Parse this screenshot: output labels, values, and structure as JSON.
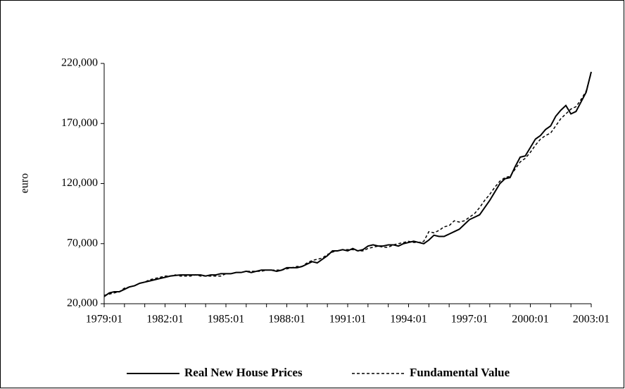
{
  "chart_data": {
    "type": "line",
    "ylabel": "euro",
    "categories": [
      "1979:01",
      null,
      null,
      null,
      null,
      null,
      null,
      null,
      null,
      null,
      null,
      null,
      "1982:01",
      null,
      null,
      null,
      null,
      null,
      null,
      null,
      null,
      null,
      null,
      null,
      "1985:01",
      null,
      null,
      null,
      null,
      null,
      null,
      null,
      null,
      null,
      null,
      null,
      "1988:01",
      null,
      null,
      null,
      null,
      null,
      null,
      null,
      null,
      null,
      null,
      null,
      "1991:01",
      null,
      null,
      null,
      null,
      null,
      null,
      null,
      null,
      null,
      null,
      null,
      "1994:01",
      null,
      null,
      null,
      null,
      null,
      null,
      null,
      null,
      null,
      null,
      null,
      "1997:01",
      null,
      null,
      null,
      null,
      null,
      null,
      null,
      null,
      null,
      null,
      null,
      "2000:01",
      null,
      null,
      null,
      null,
      null,
      null,
      null,
      null,
      null,
      null,
      null,
      "2003:01"
    ],
    "series": [
      {
        "name": "Real New House Prices",
        "color": "#000000",
        "style": "solid",
        "values": [
          26000,
          29000,
          30000,
          30000,
          32000,
          34000,
          35000,
          37000,
          38000,
          39000,
          40000,
          41000,
          42000,
          43000,
          43500,
          44000,
          44000,
          44000,
          44000,
          44000,
          43000,
          44000,
          44000,
          45000,
          45000,
          45000,
          46000,
          46000,
          47000,
          46000,
          47000,
          48000,
          48000,
          48000,
          47000,
          48000,
          50000,
          50000,
          50000,
          51000,
          53000,
          55000,
          54000,
          57000,
          60000,
          64000,
          64000,
          65000,
          64000,
          66000,
          64000,
          65000,
          68000,
          69000,
          68000,
          68000,
          69000,
          69000,
          68000,
          70000,
          71000,
          72000,
          71000,
          70000,
          73000,
          77000,
          76000,
          76000,
          78000,
          80000,
          82000,
          86000,
          90000,
          92000,
          94000,
          100000,
          106000,
          113000,
          120000,
          124000,
          125000,
          134000,
          142000,
          143000,
          150000,
          157000,
          160000,
          165000,
          168000,
          176000,
          181000,
          185000,
          178000,
          180000,
          188000,
          196000,
          213000
        ]
      },
      {
        "name": "Fundamental Value",
        "color": "#000000",
        "style": "dashed",
        "values": [
          27000,
          28000,
          29000,
          30000,
          33000,
          34000,
          35000,
          37000,
          38000,
          40000,
          41000,
          42000,
          43000,
          43000,
          44000,
          43000,
          43000,
          43000,
          44000,
          43000,
          43000,
          43000,
          43000,
          43000,
          45000,
          45000,
          46000,
          46000,
          47000,
          47000,
          47000,
          47000,
          48000,
          48000,
          48000,
          48000,
          49000,
          50000,
          51000,
          51000,
          54000,
          56000,
          57000,
          58000,
          61000,
          63000,
          64000,
          65000,
          65000,
          65000,
          64000,
          64000,
          66000,
          67000,
          68000,
          67000,
          67000,
          69000,
          70000,
          71000,
          72000,
          71000,
          71000,
          72000,
          80000,
          79000,
          81000,
          84000,
          85000,
          89000,
          88000,
          89000,
          92000,
          95000,
          100000,
          106000,
          111000,
          117000,
          122000,
          125000,
          126000,
          132000,
          138000,
          141000,
          146000,
          152000,
          157000,
          160000,
          162000,
          168000,
          174000,
          178000,
          182000,
          184000,
          190000,
          197000,
          212000
        ]
      }
    ],
    "ylim": [
      20000,
      220000
    ],
    "yticks": [
      {
        "value": 20000,
        "label": "20,000"
      },
      {
        "value": 70000,
        "label": "70,000"
      },
      {
        "value": 120000,
        "label": "120,000"
      },
      {
        "value": 170000,
        "label": "170,000"
      },
      {
        "value": 220000,
        "label": "220,000"
      }
    ],
    "grid": false,
    "legend": "bottom"
  }
}
